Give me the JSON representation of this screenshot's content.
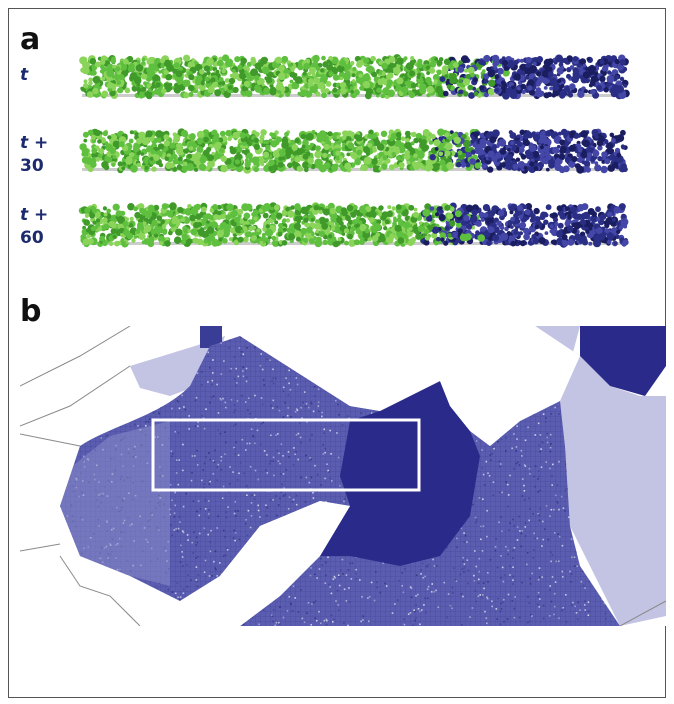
{
  "panels": {
    "a": {
      "letter": "a",
      "strips": [
        {
          "time_var": "t",
          "time_suffix": "",
          "time_line2": ""
        },
        {
          "time_var": "t",
          "time_suffix": " +",
          "time_line2": "30"
        },
        {
          "time_var": "t",
          "time_suffix": " +",
          "time_line2": "60"
        }
      ]
    },
    "b": {
      "letter": "b"
    }
  },
  "colors": {
    "green_canopy": "#5fbf3f",
    "blue_canopy": "#2a2f85",
    "map_light": "#c3c3e3",
    "map_mid": "#5a5db0",
    "map_dark": "#2a2a8a",
    "highlight_box": "#ffffff"
  },
  "strip_green_fraction": [
    0.71,
    0.69,
    0.67
  ]
}
